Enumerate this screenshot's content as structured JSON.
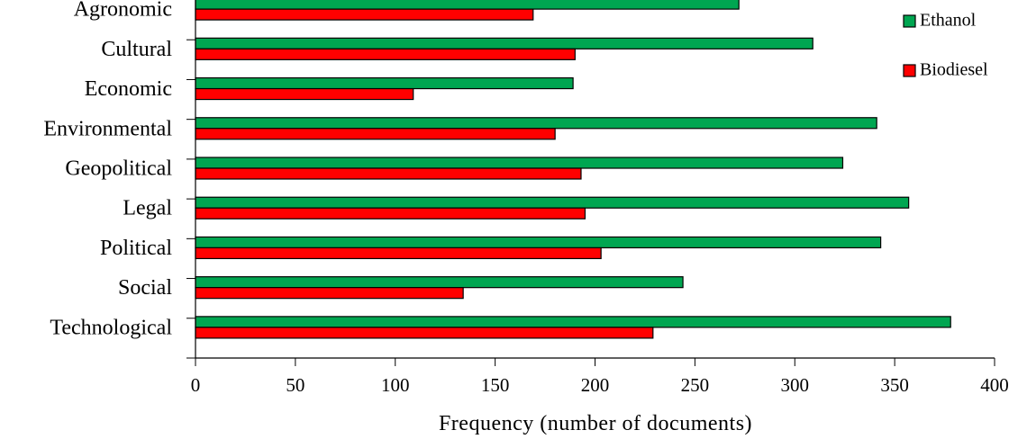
{
  "chart_data": {
    "type": "bar",
    "orientation": "horizontal",
    "title": "",
    "xlabel": "Frequency (number of documents)",
    "ylabel": "",
    "xlim": [
      0,
      400
    ],
    "xticks": [
      0,
      50,
      100,
      150,
      200,
      250,
      300,
      350,
      400
    ],
    "grid": false,
    "legend_position": "top-right",
    "categories": [
      "Agronomic",
      "Cultural",
      "Economic",
      "Environmental",
      "Geopolitical",
      "Legal",
      "Political",
      "Social",
      "Technological"
    ],
    "series": [
      {
        "name": "Ethanol",
        "color": "#00a651",
        "values": [
          272,
          309,
          189,
          341,
          324,
          357,
          343,
          244,
          378
        ]
      },
      {
        "name": "Biodiesel",
        "color": "#ff0000",
        "values": [
          169,
          190,
          109,
          180,
          193,
          195,
          203,
          134,
          229
        ]
      }
    ]
  }
}
